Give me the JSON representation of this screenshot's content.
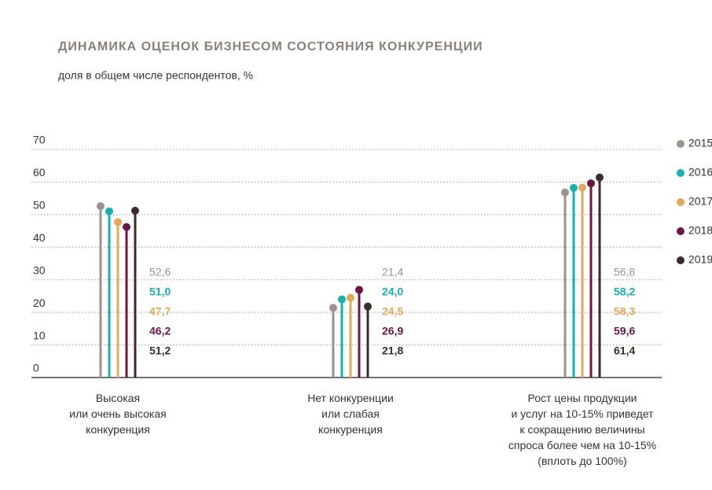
{
  "chart_data": {
    "type": "lollipop",
    "title": "ДИНАМИКА ОЦЕНОК БИЗНЕСОМ СОСТОЯНИЯ КОНКУРЕНЦИИ",
    "subtitle": "доля в общем числе респондентов, %",
    "categories": [
      "Высокая\nили очень высокая\nконкуренция",
      "Нет конкуренции\nили слабая\nконкуренция",
      "Рост цены продукции\nи услуг на 10-15% приведет\nк сокращению величины\nспроса более чем на 10-15%\n(вплоть до 100%)"
    ],
    "series": [
      {
        "name": "2015",
        "color": "#9b928b",
        "values": [
          52.6,
          21.4,
          56.8
        ],
        "value_labels": [
          "52,6",
          "21,4",
          "56,8"
        ]
      },
      {
        "name": "2016",
        "color": "#17b1b0",
        "values": [
          51.0,
          24.0,
          58.2
        ],
        "value_labels": [
          "51,0",
          "24,0",
          "58,2"
        ]
      },
      {
        "name": "2017",
        "color": "#e2a95b",
        "values": [
          47.7,
          24.5,
          58.3
        ],
        "value_labels": [
          "47,7",
          "24,5",
          "58,3"
        ]
      },
      {
        "name": "2018",
        "color": "#6d1545",
        "values": [
          46.2,
          26.9,
          59.6
        ],
        "value_labels": [
          "46,2",
          "26,9",
          "59,6"
        ]
      },
      {
        "name": "2019",
        "color": "#3b2b2b",
        "values": [
          51.2,
          21.8,
          61.4
        ],
        "value_labels": [
          "51,2",
          "21,8",
          "61,4"
        ]
      }
    ],
    "ylim": [
      0,
      70
    ],
    "yticks": [
      0,
      10,
      20,
      30,
      40,
      50,
      60,
      70
    ],
    "grid": true,
    "legend": "right"
  }
}
